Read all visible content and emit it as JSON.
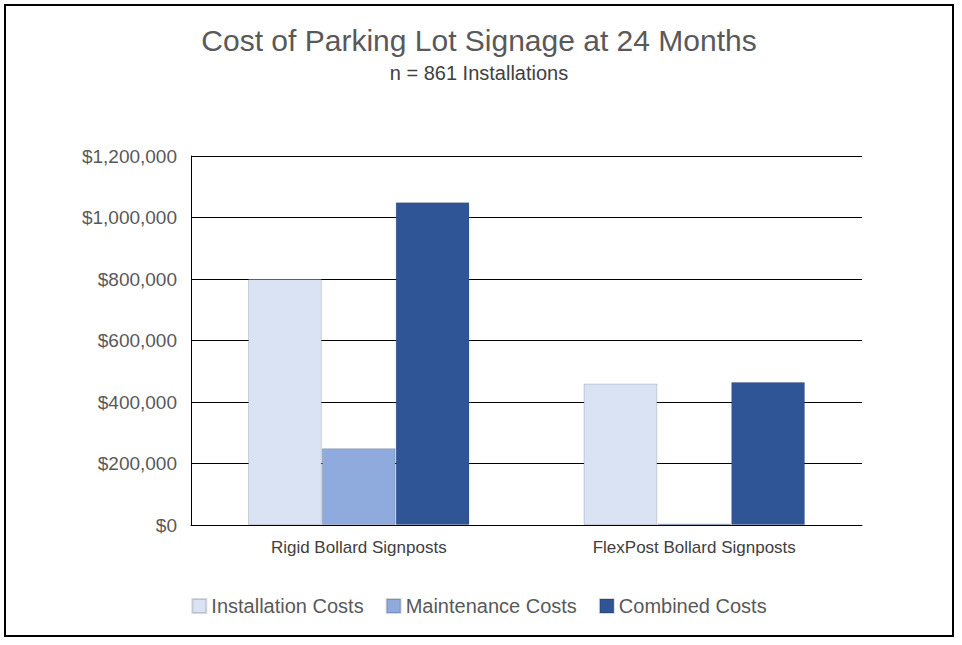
{
  "chart_data": {
    "type": "bar",
    "title": "Cost of Parking Lot Signage at 24 Months",
    "subtitle": "n = 861 Installations",
    "categories": [
      "Rigid Bollard Signposts",
      "FlexPost Bollard Signposts"
    ],
    "series": [
      {
        "name": "Installation Costs",
        "color": "#dae3f3",
        "values": [
          800000,
          460000
        ]
      },
      {
        "name": "Maintenance Costs",
        "color": "#8faadc",
        "values": [
          250000,
          5000
        ]
      },
      {
        "name": "Combined Costs",
        "color": "#2f5597",
        "values": [
          1050000,
          465000
        ]
      }
    ],
    "ylim": [
      0,
      1200000
    ],
    "yticks": [
      {
        "value": 0,
        "label": "$0"
      },
      {
        "value": 200000,
        "label": "$200,000"
      },
      {
        "value": 400000,
        "label": "$400,000"
      },
      {
        "value": 600000,
        "label": "$600,000"
      },
      {
        "value": 800000,
        "label": "$800,000"
      },
      {
        "value": 1000000,
        "label": "$1,000,000"
      },
      {
        "value": 1200000,
        "label": "$1,200,000"
      }
    ],
    "grid": true,
    "legend": "bottom"
  }
}
